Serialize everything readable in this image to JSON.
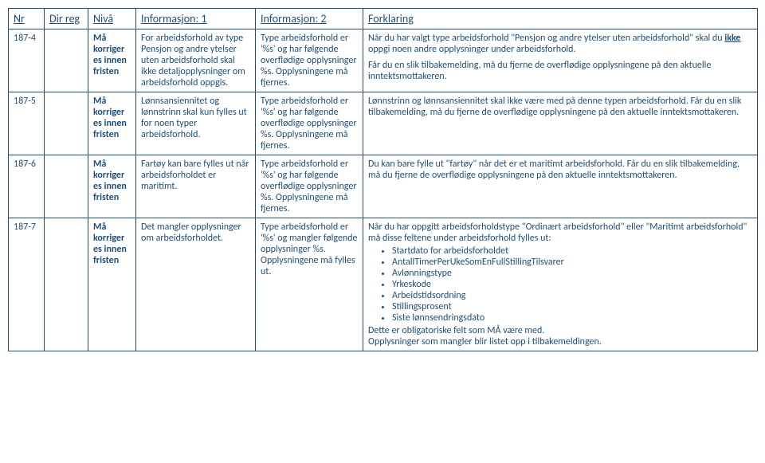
{
  "headers": {
    "nr": "Nr",
    "dir": "Dir reg",
    "niva": "Nivå",
    "info1": "Informasjon: 1",
    "info2": "Informasjon: 2",
    "fork": "Forklaring"
  },
  "rows": [
    {
      "nr": "187-4",
      "dir": "",
      "niva": "Må korriger es innen fristen",
      "info1": "For arbeidsforhold av type Pensjon og andre ytelser uten arbeidsforhold skal ikke detaljopplysninger om arbeidsforhold oppgis.",
      "info2": "Type arbeidsforhold er '%s' og har følgende overflødige opplysninger %s. Opplysningene må fjernes.",
      "fork_p1a": "Når du har valgt type arbeidsforhold \"Pensjon og andre ytelser uten arbeidsforhold\" skal du ",
      "fork_p1b": "ikke",
      "fork_p1c": " oppgi noen andre opplysninger under arbeidsforhold.",
      "fork_p2": "Får du en slik tilbakemelding, må du fjerne de overflødige opplysningene på den aktuelle inntektsmottakeren."
    },
    {
      "nr": "187-5",
      "dir": "",
      "niva": "Må korriger es innen fristen",
      "info1": "Lønnsansiennitet og lønnstrinn skal kun fylles ut for noen typer arbeidsforhold.",
      "info2": "Type arbeidsforhold er '%s' og har følgende overflødige opplysninger %s. Opplysningene må fjernes.",
      "fork_p1": "Lønnstrinn og lønnsansiennitet skal ikke være med på denne typen arbeidsforhold. Får du en slik tilbakemelding, må du fjerne de overflødige opplysningene på den aktuelle inntektsmottakeren."
    },
    {
      "nr": "187-6",
      "dir": "",
      "niva": "Må korriger es innen fristen",
      "info1": "Fartøy kan bare fylles ut når arbeidsforholdet er maritimt.",
      "info2": "Type arbeidsforhold er '%s' og har følgende overflødige opplysninger %s. Opplysningene må fjernes.",
      "fork_p1": "Du kan bare fylle ut \"fartøy\" når det er et maritimt arbeidsforhold. Får du en slik tilbakemelding, må du fjerne de overflødige opplysningene på den aktuelle inntektsmottakeren."
    },
    {
      "nr": "187-7",
      "dir": "",
      "niva": "Må korriger es innen fristen",
      "info1": "Det mangler opplysninger om arbeidsforholdet.",
      "info2": "Type arbeidsforhold er '%s' og mangler følgende opplysninger %s. Opplysningene må fylles ut.",
      "fork_intro": "Når du har oppgitt arbeidsforholdstype \"Ordinært arbeidsforhold\" eller \"Maritimt arbeidsforhold\" må disse feltene under arbeidsforhold fylles ut:",
      "fork_bullets": [
        "Startdato for arbeidsforholdet",
        "AntallTimerPerUkeSomEnFullStillingTilsvarer",
        "Avlønningstype",
        "Yrkeskode",
        "Arbeidstidsordning",
        "Stillingsprosent",
        "Siste lønnsendringsdato"
      ],
      "fork_after1": "Dette er obligatoriske felt som MÅ være med.",
      "fork_after2": "Opplysninger som mangler blir listet opp i tilbakemeldingen."
    }
  ]
}
